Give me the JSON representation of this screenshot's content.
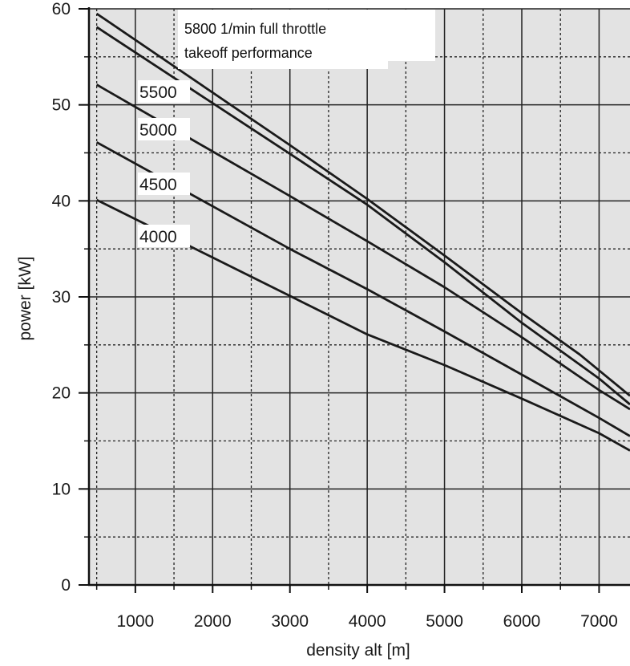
{
  "chart_data": {
    "type": "line",
    "title": "",
    "xlabel": "density alt [m]",
    "ylabel": "power [kW]",
    "xlim": [
      400,
      7400
    ],
    "ylim": [
      0,
      60
    ],
    "x_ticks": [
      1000,
      2000,
      3000,
      4000,
      5000,
      6000,
      7000
    ],
    "y_ticks": [
      0,
      10,
      20,
      30,
      40,
      50,
      60
    ],
    "x_minor_ticks": [
      500,
      1500,
      2500,
      3500,
      4500,
      5500,
      6500
    ],
    "y_minor_ticks": [
      5,
      15,
      25,
      35,
      45,
      55
    ],
    "grid": true,
    "background": "#e3e3e3",
    "line_color": "#1a1a1a",
    "annotation": {
      "line1": "5800 1/min full throttle",
      "line2": "takeoff performance"
    },
    "series": [
      {
        "name": "",
        "x": [
          500,
          3000,
          4000,
          5000,
          6000,
          6750,
          7400
        ],
        "y": [
          59.5,
          45.8,
          40.2,
          34.3,
          28.3,
          24.0,
          19.7
        ]
      },
      {
        "name": "5500",
        "x": [
          500,
          3000,
          4000,
          5000,
          6000,
          7000,
          7400
        ],
        "y": [
          58.1,
          44.9,
          39.6,
          33.6,
          27.3,
          21.5,
          18.8
        ]
      },
      {
        "name": "5000",
        "x": [
          500,
          3000,
          4000,
          5000,
          6000,
          7000,
          7400
        ],
        "y": [
          52.1,
          40.5,
          35.8,
          31.0,
          25.8,
          20.3,
          18.3
        ]
      },
      {
        "name": "4500",
        "x": [
          500,
          3000,
          4000,
          5000,
          6000,
          7000,
          7400
        ],
        "y": [
          46.1,
          35.0,
          30.8,
          26.4,
          21.9,
          17.4,
          15.5
        ]
      },
      {
        "name": "4000",
        "x": [
          500,
          3000,
          4000,
          5000,
          6000,
          7000,
          7400
        ],
        "y": [
          40.1,
          30.1,
          26.1,
          22.9,
          19.4,
          15.8,
          14.0
        ]
      }
    ]
  }
}
